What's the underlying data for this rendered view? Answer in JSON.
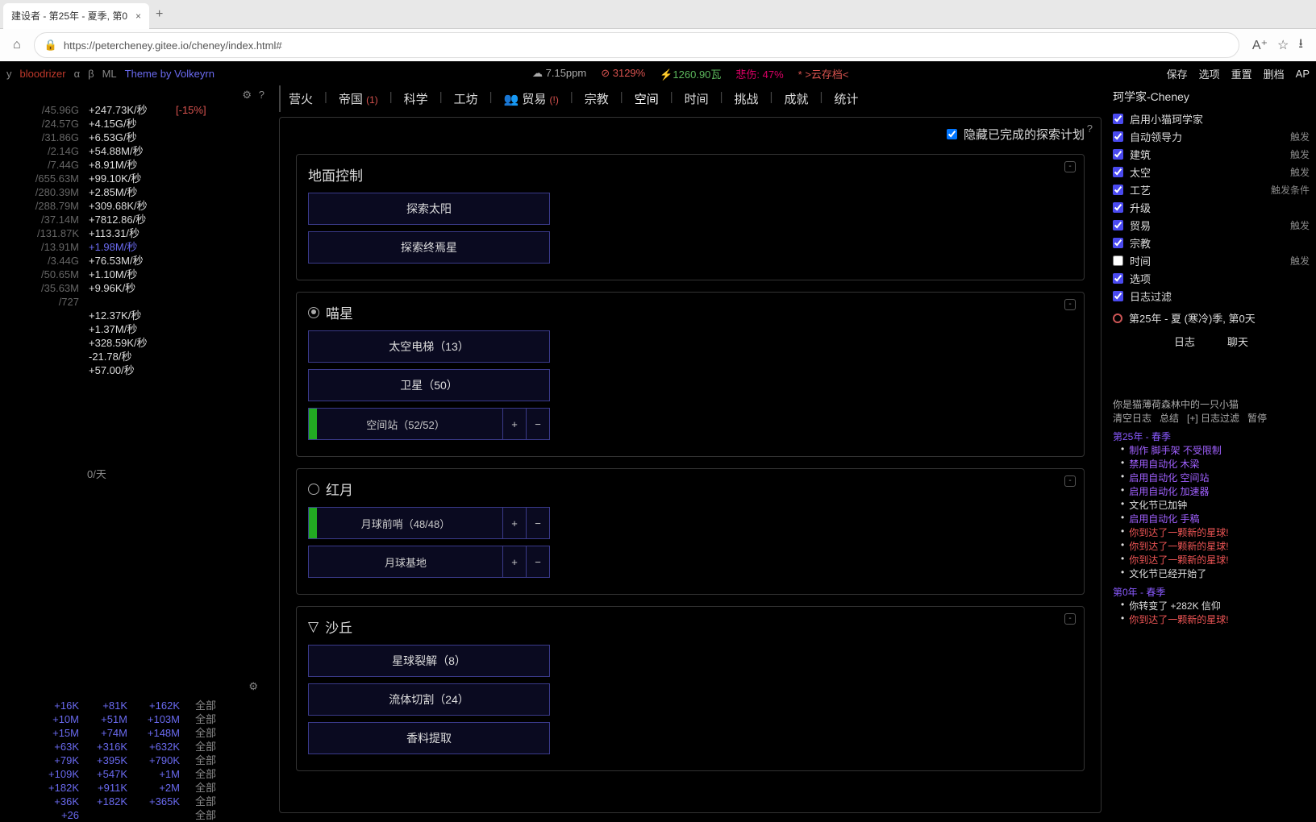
{
  "browser": {
    "tab_title": "建设者 - 第25年 - 夏季, 第0",
    "url": "https://petercheney.gitee.io/cheney/index.html#"
  },
  "topbar": {
    "y": "y",
    "bloodrizer": "bloodrizer",
    "alpha": "α",
    "beta": "β",
    "ml": "ML",
    "theme": "Theme by Volkeyrn",
    "ppm": "7.15ppm",
    "nip": "3129%",
    "energy": "1260.90瓦",
    "sorrow": "悲伤: 47%",
    "cloudsave": "* >云存档<",
    "links": [
      "保存",
      "选项",
      "重置",
      "删档",
      "AP"
    ]
  },
  "resources": [
    {
      "cap": "/45.96G",
      "rate": "+247.73K/秒",
      "bonus": "[-15%]"
    },
    {
      "cap": "/24.57G",
      "rate": "+4.15G/秒"
    },
    {
      "cap": "/31.86G",
      "rate": "+6.53G/秒"
    },
    {
      "cap": "/2.14G",
      "rate": "+54.88M/秒"
    },
    {
      "cap": "/7.44G",
      "rate": "+8.91M/秒"
    },
    {
      "cap": "/655.63M",
      "rate": "+99.10K/秒"
    },
    {
      "cap": "/280.39M",
      "rate": "+2.85M/秒"
    },
    {
      "cap": "/288.79M",
      "rate": "+309.68K/秒"
    },
    {
      "cap": "/37.14M",
      "rate": "+7812.86/秒"
    },
    {
      "cap": "/131.87K",
      "rate": "+113.31/秒"
    },
    {
      "cap": "/13.91M",
      "rate": "+1.98M/秒",
      "blue": true
    },
    {
      "cap": "/3.44G",
      "rate": "+76.53M/秒"
    },
    {
      "cap": "/50.65M",
      "rate": "+1.10M/秒"
    },
    {
      "cap": "/35.63M",
      "rate": "+9.96K/秒"
    },
    {
      "cap": "/727"
    },
    {
      "rate": "+12.37K/秒"
    },
    {
      "rate": "+1.37M/秒"
    },
    {
      "rate": "+328.59K/秒"
    },
    {
      "rate": "-21.78/秒"
    },
    {
      "rate": "+57.00/秒"
    }
  ],
  "perday": "0/天",
  "crafts": [
    {
      "c1": "+16K",
      "c2": "+81K",
      "c3": "+162K",
      "all": "全部"
    },
    {
      "c1": "+10M",
      "c2": "+51M",
      "c3": "+103M",
      "all": "全部"
    },
    {
      "c1": "+15M",
      "c2": "+74M",
      "c3": "+148M",
      "all": "全部"
    },
    {
      "c1": "+63K",
      "c2": "+316K",
      "c3": "+632K",
      "all": "全部"
    },
    {
      "c1": "+79K",
      "c2": "+395K",
      "c3": "+790K",
      "all": "全部"
    },
    {
      "c1": "+109K",
      "c2": "+547K",
      "c3": "+1M",
      "all": "全部"
    },
    {
      "c1": "+182K",
      "c2": "+911K",
      "c3": "+2M",
      "all": "全部"
    },
    {
      "c1": "+36K",
      "c2": "+182K",
      "c3": "+365K",
      "all": "全部"
    },
    {
      "c1": "+26",
      "all": "全部"
    }
  ],
  "tabs": [
    {
      "label": "营火"
    },
    {
      "label": "帝国",
      "note": "(1)"
    },
    {
      "label": "科学"
    },
    {
      "label": "工坊"
    },
    {
      "label": "贸易",
      "icon": "👥",
      "note": "(!)"
    },
    {
      "label": "宗教"
    },
    {
      "label": "空间",
      "active": true
    },
    {
      "label": "时间"
    },
    {
      "label": "挑战"
    },
    {
      "label": "成就"
    },
    {
      "label": "统计"
    }
  ],
  "hide_done": "隐藏已完成的探索计划",
  "sections": [
    {
      "title": "地面控制",
      "icon": "",
      "items": [
        {
          "label": "探索太阳"
        },
        {
          "label": "探索终焉星"
        }
      ]
    },
    {
      "title": "喵星",
      "icon": "dot",
      "items": [
        {
          "label": "太空电梯（13）"
        },
        {
          "label": "卫星（50）"
        },
        {
          "label": "空间站（52/52）",
          "pm": true,
          "prog": true
        }
      ]
    },
    {
      "title": "红月",
      "icon": "circle",
      "items": [
        {
          "label": "月球前哨（48/48）",
          "pm": true,
          "prog": true
        },
        {
          "label": "月球基地",
          "pm": true
        }
      ]
    },
    {
      "title": "沙丘",
      "icon": "dune",
      "items": [
        {
          "label": "星球裂解（8）"
        },
        {
          "label": "流体切割（24）"
        },
        {
          "label": "香料提取"
        }
      ]
    }
  ],
  "scientist": {
    "title": "珂学家-Cheney",
    "rows": [
      {
        "label": "启用小猫珂学家",
        "checked": true
      },
      {
        "label": "自动领导力",
        "checked": true,
        "trigger": "触发"
      },
      {
        "label": "建筑",
        "checked": true,
        "trigger": "触发"
      },
      {
        "label": "太空",
        "checked": true,
        "trigger": "触发"
      },
      {
        "label": "工艺",
        "checked": true,
        "trigger": "触发条件"
      },
      {
        "label": "升级",
        "checked": true
      },
      {
        "label": "贸易",
        "checked": true,
        "trigger": "触发"
      },
      {
        "label": "宗教",
        "checked": true
      },
      {
        "label": "时间",
        "checked": false,
        "trigger": "触发"
      },
      {
        "label": "选项",
        "checked": true
      },
      {
        "label": "日志过滤",
        "checked": true
      }
    ],
    "calendar": "第25年 - 夏 (寒冷)季, 第0天",
    "logtab1": "日志",
    "logtab2": "聊天"
  },
  "log": {
    "intro": "你是猫薄荷森林中的一只小猫",
    "ctrl": [
      "清空日志",
      "总结",
      "[+] 日志过滤",
      "暂停"
    ],
    "blocks": [
      {
        "year": "第25年 - 春季",
        "lines": [
          {
            "t": "制作 脚手架 不受限制",
            "c": "purple"
          },
          {
            "t": "禁用自动化 木梁",
            "c": "purple"
          },
          {
            "t": "启用自动化 空间站",
            "c": "purple"
          },
          {
            "t": "启用自动化 加速器",
            "c": "purple"
          },
          {
            "t": "文化节已加钟",
            "c": "white"
          },
          {
            "t": "启用自动化 手稿",
            "c": "purple"
          },
          {
            "t": "你到达了一颗新的星球!",
            "c": "red"
          },
          {
            "t": "你到达了一颗新的星球!",
            "c": "red"
          },
          {
            "t": "你到达了一颗新的星球!",
            "c": "red"
          },
          {
            "t": "文化节已经开始了",
            "c": "white"
          }
        ]
      },
      {
        "year": "第0年 - 春季",
        "lines": [
          {
            "t": "你转变了 +282K 信仰",
            "c": "white"
          },
          {
            "t": "你到达了一颗新的星球!",
            "c": "red"
          }
        ]
      }
    ]
  }
}
